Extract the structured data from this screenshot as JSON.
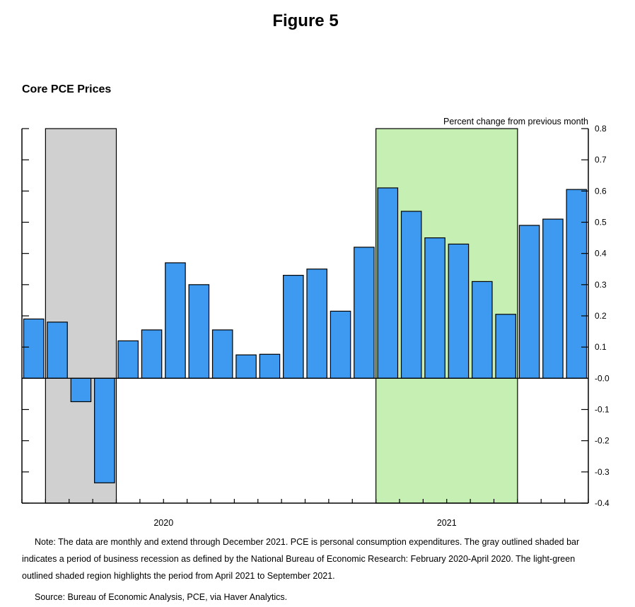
{
  "figure_title": "Figure 5",
  "chart_data": {
    "type": "bar",
    "title": "Core PCE Prices",
    "ylabel": "Percent change from previous month",
    "xlabel": "",
    "ylim": [
      -0.4,
      0.8
    ],
    "yticks": [
      "0.8",
      "0.7",
      "0.6",
      "0.5",
      "0.4",
      "0.3",
      "0.2",
      "0.1",
      "-0.0",
      "-0.1",
      "-0.2",
      "-0.3",
      "-0.4"
    ],
    "y_axis_side": "right",
    "grid": false,
    "categories": [
      "2020-01",
      "2020-02",
      "2020-03",
      "2020-04",
      "2020-05",
      "2020-06",
      "2020-07",
      "2020-08",
      "2020-09",
      "2020-10",
      "2020-11",
      "2020-12",
      "2021-01",
      "2021-02",
      "2021-03",
      "2021-04",
      "2021-05",
      "2021-06",
      "2021-07",
      "2021-08",
      "2021-09",
      "2021-10",
      "2021-11",
      "2021-12"
    ],
    "values": [
      0.19,
      0.18,
      -0.075,
      -0.335,
      0.12,
      0.155,
      0.37,
      0.3,
      0.155,
      0.075,
      0.077,
      0.33,
      0.35,
      0.215,
      0.42,
      0.61,
      0.535,
      0.45,
      0.43,
      0.31,
      0.205,
      0.49,
      0.51,
      0.605
    ],
    "year_labels": [
      "2020",
      "2021"
    ],
    "shaded_regions": [
      {
        "start": "2020-02",
        "end": "2020-04",
        "color": "#d0d0d0"
      },
      {
        "start": "2021-04",
        "end": "2021-09",
        "color": "#c6efb3"
      }
    ],
    "bar_color": "#3d9af0"
  },
  "notes": {
    "note": "Note: The data are monthly and extend through December 2021. PCE is personal consumption expenditures. The gray outlined shaded bar indicates a period of business recession as defined by the National Bureau of Economic Research: February 2020-April 2020. The light-green outlined shaded region highlights the period from April 2021 to September 2021.",
    "source": "Source: Bureau of Economic Analysis, PCE, via Haver Analytics."
  }
}
